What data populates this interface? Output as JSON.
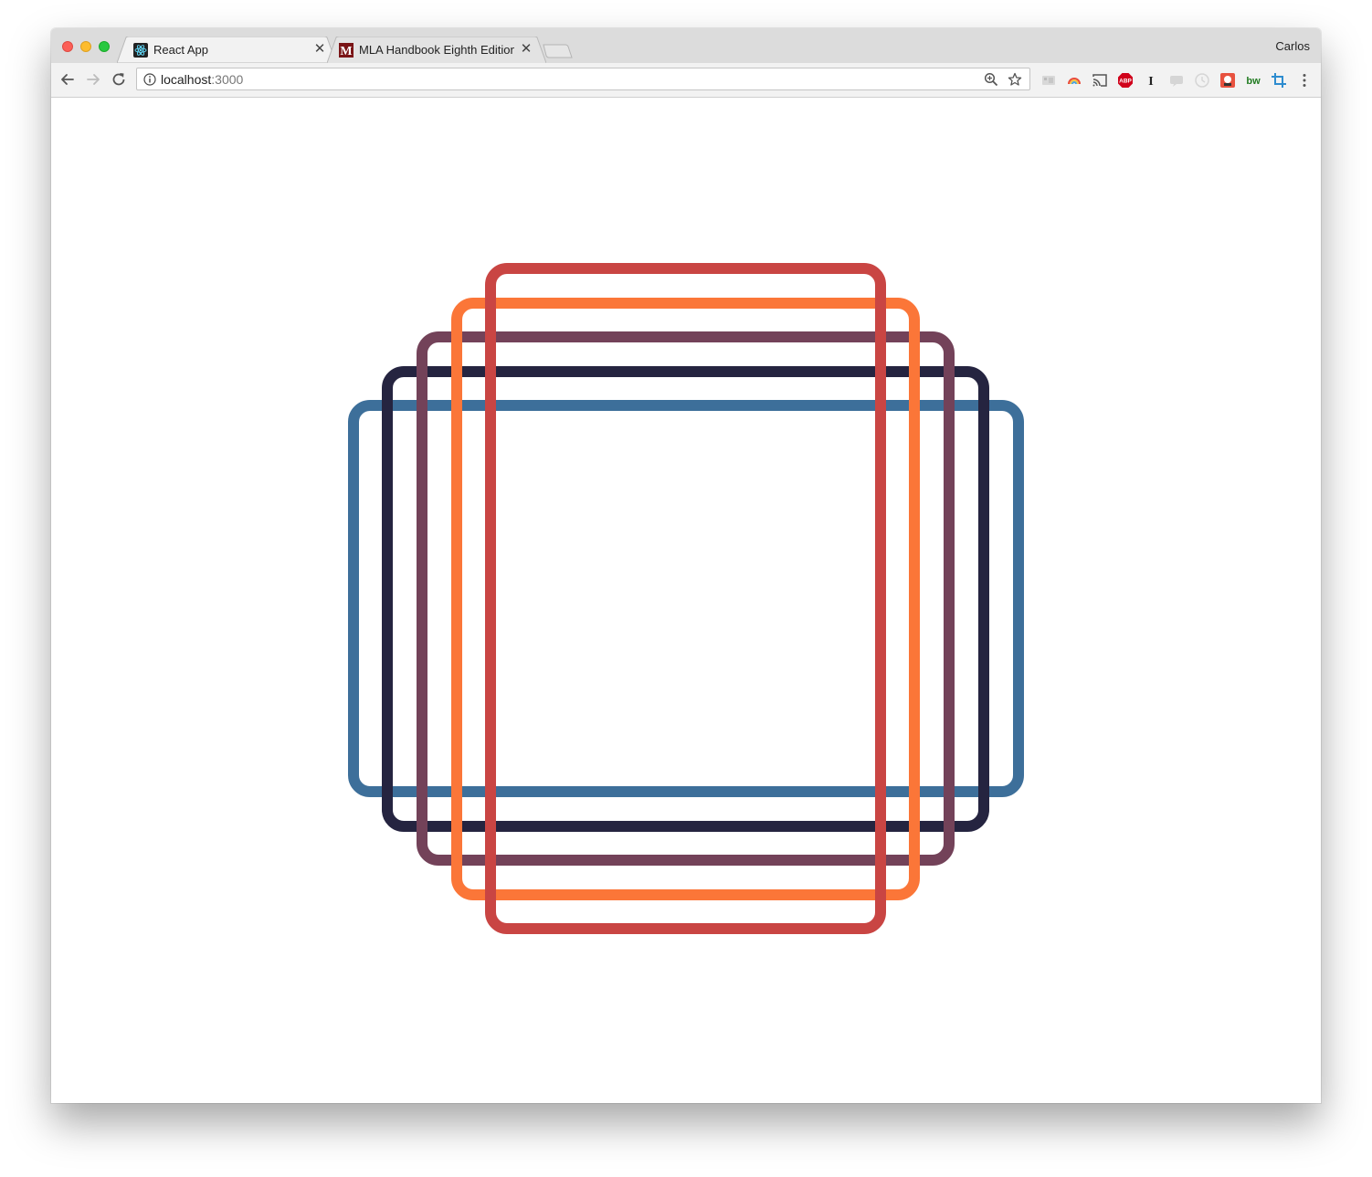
{
  "tabs": [
    {
      "title": "React App",
      "favicon": "react-icon",
      "active": true
    },
    {
      "title": "MLA Handbook Eighth Edition",
      "favicon": "m-logo-icon",
      "active": false
    }
  ],
  "profile": {
    "name": "Carlos"
  },
  "toolbar": {
    "url_host": "localhost",
    "url_port": ":3000",
    "extensions": [
      "extension-icon",
      "rainbow-extension-icon",
      "cast-icon",
      "adblock-plus-icon",
      "i-extension-icon",
      "chat-extension-icon",
      "clock-extension-icon",
      "red-extension-icon",
      "bw-extension-icon",
      "crop-extension-icon",
      "menu-icon"
    ]
  },
  "artwork": {
    "squares": [
      {
        "name": "blue-square",
        "color": "#3d6f9a"
      },
      {
        "name": "navy-square",
        "color": "#252440"
      },
      {
        "name": "plum-square",
        "color": "#734259"
      },
      {
        "name": "orange-square",
        "color": "#fb7638"
      },
      {
        "name": "red-square",
        "color": "#c94543"
      }
    ]
  }
}
